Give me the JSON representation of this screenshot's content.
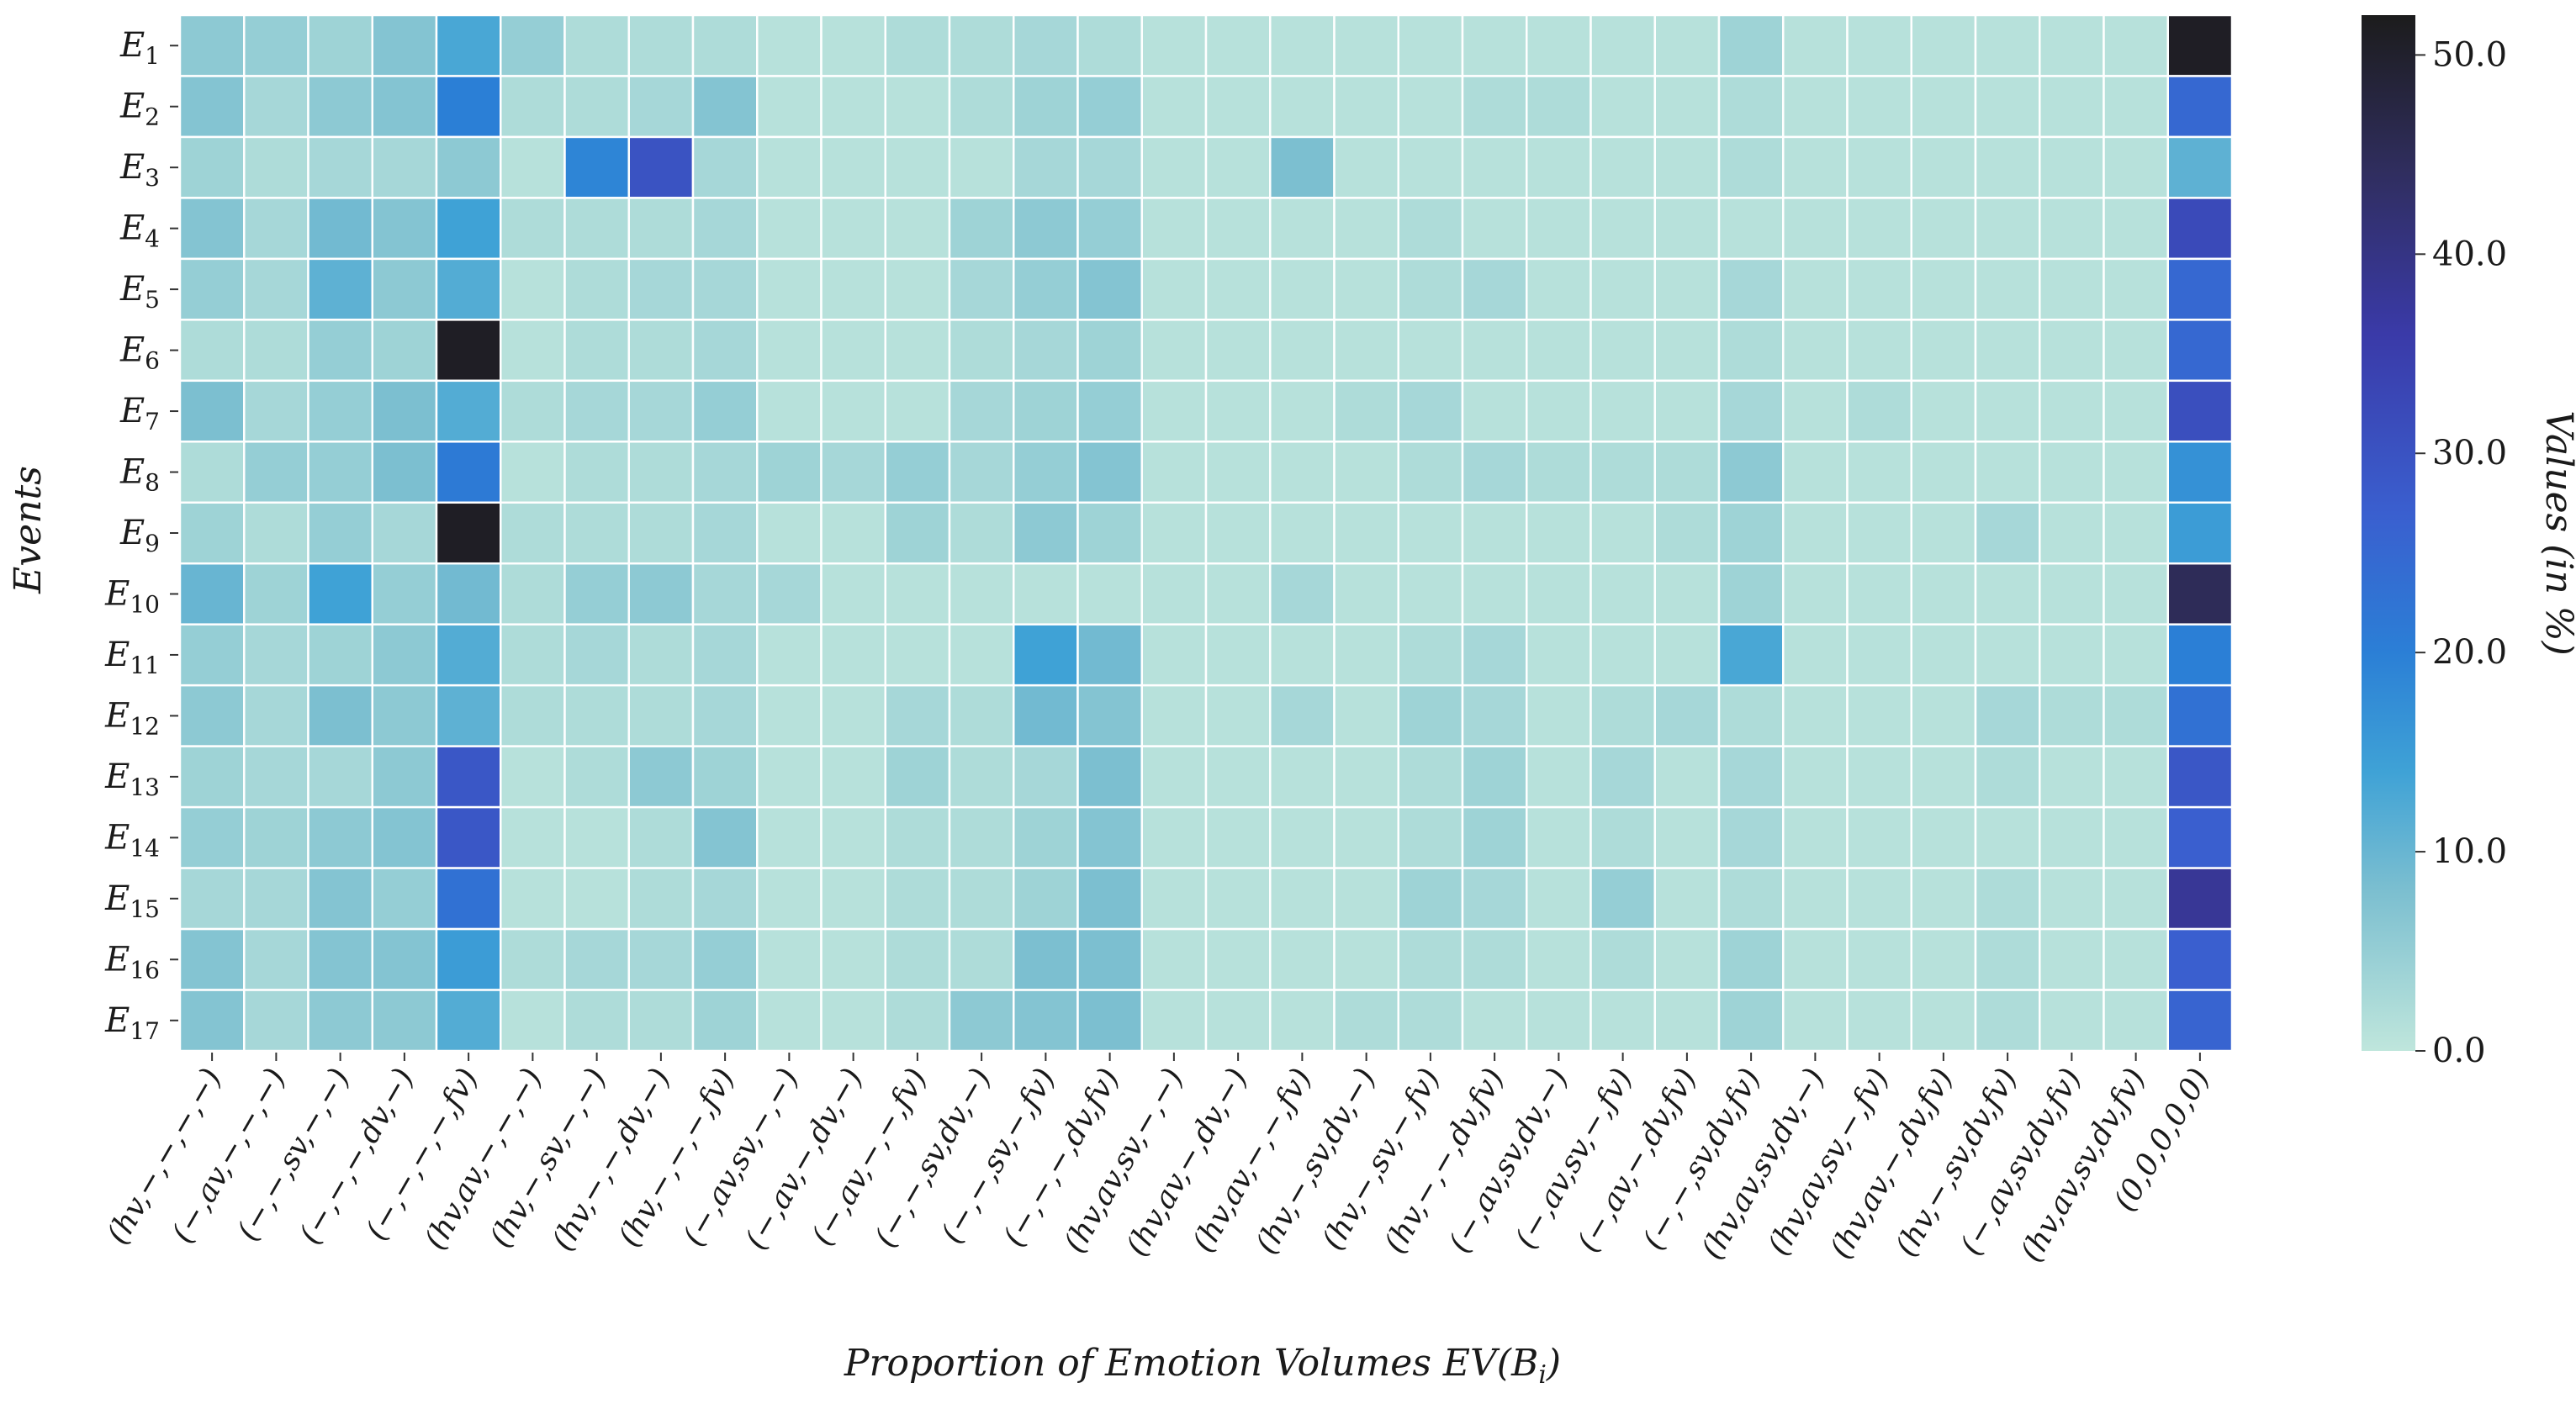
{
  "chart_data": {
    "type": "heatmap",
    "ylabel": "Events",
    "xlabel": "Proportion of Emotion Volumes EV(B",
    "xlabel_sub": "i",
    "xlabel_close": ")",
    "colorbar_label": "Values (in %)",
    "rows": [
      {
        "base": "E",
        "sub": "1"
      },
      {
        "base": "E",
        "sub": "2"
      },
      {
        "base": "E",
        "sub": "3"
      },
      {
        "base": "E",
        "sub": "4"
      },
      {
        "base": "E",
        "sub": "5"
      },
      {
        "base": "E",
        "sub": "6"
      },
      {
        "base": "E",
        "sub": "7"
      },
      {
        "base": "E",
        "sub": "8"
      },
      {
        "base": "E",
        "sub": "9"
      },
      {
        "base": "E",
        "sub": "10"
      },
      {
        "base": "E",
        "sub": "11"
      },
      {
        "base": "E",
        "sub": "12"
      },
      {
        "base": "E",
        "sub": "13"
      },
      {
        "base": "E",
        "sub": "14"
      },
      {
        "base": "E",
        "sub": "15"
      },
      {
        "base": "E",
        "sub": "16"
      },
      {
        "base": "E",
        "sub": "17"
      }
    ],
    "columns": [
      "(hv,−,−,−,−)",
      "(−,av,−,−,−)",
      "(−,−,sv,−,−)",
      "(−,−,−,dv,−)",
      "(−,−,−,−,fv)",
      "(hv,av,−,−,−)",
      "(hv,−,sv,−,−)",
      "(hv,−,−,dv,−)",
      "(hv,−,−,−,fv)",
      "(−,av,sv,−,−)",
      "(−,av,−,dv,−)",
      "(−,av,−,−,fv)",
      "(−,−,sv,dv,−)",
      "(−,−,sv,−,fv)",
      "(−,−,−,dv,fv)",
      "(hv,av,sv,−,−)",
      "(hv,av,−,dv,−)",
      "(hv,av,−,−,fv)",
      "(hv,−,sv,dv,−)",
      "(hv,−,sv,−,fv)",
      "(hv,−,−,dv,fv)",
      "(−,av,sv,dv,−)",
      "(−,av,sv,−,fv)",
      "(−,av,−,dv,fv)",
      "(−,−,sv,dv,fv)",
      "(hv,av,sv,dv,−)",
      "(hv,av,sv,−,fv)",
      "(hv,av,−,dv,fv)",
      "(hv,−,sv,dv,fv)",
      "(−,av,sv,dv,fv)",
      "(hv,av,sv,dv,fv)",
      "(0,0,0,0,0)"
    ],
    "values": [
      [
        6,
        5,
        4,
        7,
        13,
        5,
        2,
        2,
        2,
        1,
        1,
        2,
        2,
        3,
        2,
        1,
        1,
        1,
        1,
        1,
        1,
        1,
        1,
        1,
        4,
        1,
        1,
        1,
        1,
        1,
        1,
        51
      ],
      [
        7,
        3,
        6,
        7,
        20,
        2,
        2,
        3,
        7,
        1,
        1,
        1,
        2,
        4,
        5,
        1,
        1,
        1,
        1,
        1,
        2,
        2,
        1,
        1,
        2,
        1,
        1,
        1,
        1,
        1,
        1,
        25
      ],
      [
        4,
        2,
        3,
        3,
        6,
        1,
        19,
        30,
        3,
        1,
        1,
        1,
        1,
        3,
        3,
        1,
        1,
        8,
        1,
        1,
        1,
        1,
        1,
        1,
        2,
        1,
        1,
        1,
        1,
        1,
        1,
        11
      ],
      [
        7,
        3,
        9,
        7,
        14,
        2,
        2,
        2,
        3,
        1,
        1,
        1,
        4,
        6,
        5,
        1,
        1,
        1,
        1,
        2,
        1,
        1,
        1,
        1,
        1,
        1,
        1,
        1,
        1,
        1,
        1,
        32
      ],
      [
        5,
        3,
        11,
        6,
        12,
        1,
        2,
        3,
        3,
        1,
        1,
        1,
        3,
        5,
        7,
        1,
        1,
        1,
        1,
        2,
        3,
        1,
        1,
        1,
        3,
        1,
        1,
        1,
        1,
        1,
        1,
        25
      ],
      [
        2,
        2,
        5,
        4,
        51,
        1,
        2,
        2,
        3,
        1,
        1,
        1,
        2,
        3,
        4,
        1,
        1,
        1,
        1,
        1,
        1,
        1,
        1,
        1,
        2,
        1,
        1,
        1,
        1,
        1,
        1,
        25
      ],
      [
        8,
        3,
        5,
        8,
        12,
        2,
        3,
        3,
        5,
        1,
        1,
        1,
        3,
        4,
        5,
        1,
        1,
        1,
        2,
        3,
        1,
        1,
        1,
        1,
        3,
        1,
        2,
        1,
        1,
        1,
        1,
        31
      ],
      [
        2,
        5,
        5,
        8,
        21,
        1,
        2,
        2,
        3,
        4,
        3,
        5,
        3,
        5,
        7,
        1,
        1,
        1,
        1,
        2,
        3,
        2,
        2,
        2,
        6,
        1,
        1,
        1,
        1,
        1,
        1,
        17
      ],
      [
        4,
        2,
        5,
        3,
        51,
        2,
        2,
        2,
        3,
        1,
        1,
        4,
        2,
        6,
        4,
        1,
        1,
        1,
        1,
        1,
        1,
        1,
        1,
        2,
        4,
        1,
        1,
        1,
        3,
        1,
        1,
        15
      ],
      [
        10,
        4,
        14,
        5,
        9,
        2,
        5,
        6,
        3,
        3,
        1,
        1,
        1,
        1,
        1,
        1,
        1,
        3,
        1,
        1,
        1,
        1,
        1,
        1,
        4,
        1,
        1,
        1,
        1,
        1,
        1,
        45
      ],
      [
        5,
        3,
        4,
        6,
        12,
        2,
        3,
        2,
        3,
        1,
        1,
        1,
        1,
        14,
        9,
        1,
        1,
        1,
        1,
        2,
        3,
        1,
        1,
        1,
        13,
        1,
        1,
        1,
        1,
        1,
        1,
        20
      ],
      [
        6,
        3,
        8,
        6,
        11,
        2,
        2,
        2,
        3,
        1,
        1,
        3,
        2,
        9,
        7,
        1,
        1,
        3,
        1,
        4,
        3,
        1,
        2,
        3,
        2,
        1,
        1,
        1,
        3,
        2,
        2,
        23
      ],
      [
        4,
        3,
        3,
        6,
        29,
        1,
        2,
        6,
        4,
        1,
        1,
        4,
        2,
        3,
        8,
        1,
        1,
        1,
        1,
        2,
        4,
        1,
        3,
        1,
        3,
        1,
        1,
        1,
        2,
        1,
        1,
        29
      ],
      [
        5,
        4,
        6,
        7,
        29,
        1,
        1,
        2,
        7,
        1,
        1,
        2,
        2,
        4,
        7,
        1,
        1,
        1,
        1,
        2,
        4,
        1,
        2,
        1,
        3,
        1,
        1,
        1,
        1,
        1,
        1,
        27
      ],
      [
        3,
        3,
        7,
        5,
        23,
        1,
        1,
        2,
        3,
        1,
        1,
        2,
        2,
        4,
        8,
        1,
        1,
        1,
        1,
        4,
        3,
        1,
        5,
        1,
        2,
        1,
        1,
        1,
        2,
        1,
        1,
        38
      ],
      [
        7,
        3,
        7,
        7,
        15,
        2,
        3,
        3,
        5,
        1,
        1,
        2,
        2,
        8,
        8,
        1,
        1,
        1,
        1,
        2,
        2,
        1,
        2,
        1,
        4,
        1,
        1,
        1,
        2,
        1,
        1,
        27
      ],
      [
        7,
        3,
        6,
        6,
        12,
        1,
        2,
        2,
        4,
        1,
        1,
        2,
        6,
        7,
        8,
        1,
        1,
        1,
        2,
        2,
        1,
        1,
        1,
        1,
        4,
        1,
        1,
        1,
        2,
        1,
        1,
        26
      ]
    ],
    "color_range": [
      0,
      52
    ],
    "colorbar_ticks": [
      "0.0",
      "10.0",
      "20.0",
      "30.0",
      "40.0",
      "50.0"
    ],
    "colorbar_tick_values": [
      0,
      10,
      20,
      30,
      40,
      50
    ],
    "colormap_stops": [
      {
        "v": 0,
        "color": "#bfe6dc"
      },
      {
        "v": 8,
        "color": "#7cbfd0"
      },
      {
        "v": 14,
        "color": "#3fa2d6"
      },
      {
        "v": 20,
        "color": "#2b7fd6"
      },
      {
        "v": 27,
        "color": "#3a5fcf"
      },
      {
        "v": 36,
        "color": "#3a3aa8"
      },
      {
        "v": 44,
        "color": "#302e60"
      },
      {
        "v": 52,
        "color": "#1c1c1c"
      }
    ]
  }
}
